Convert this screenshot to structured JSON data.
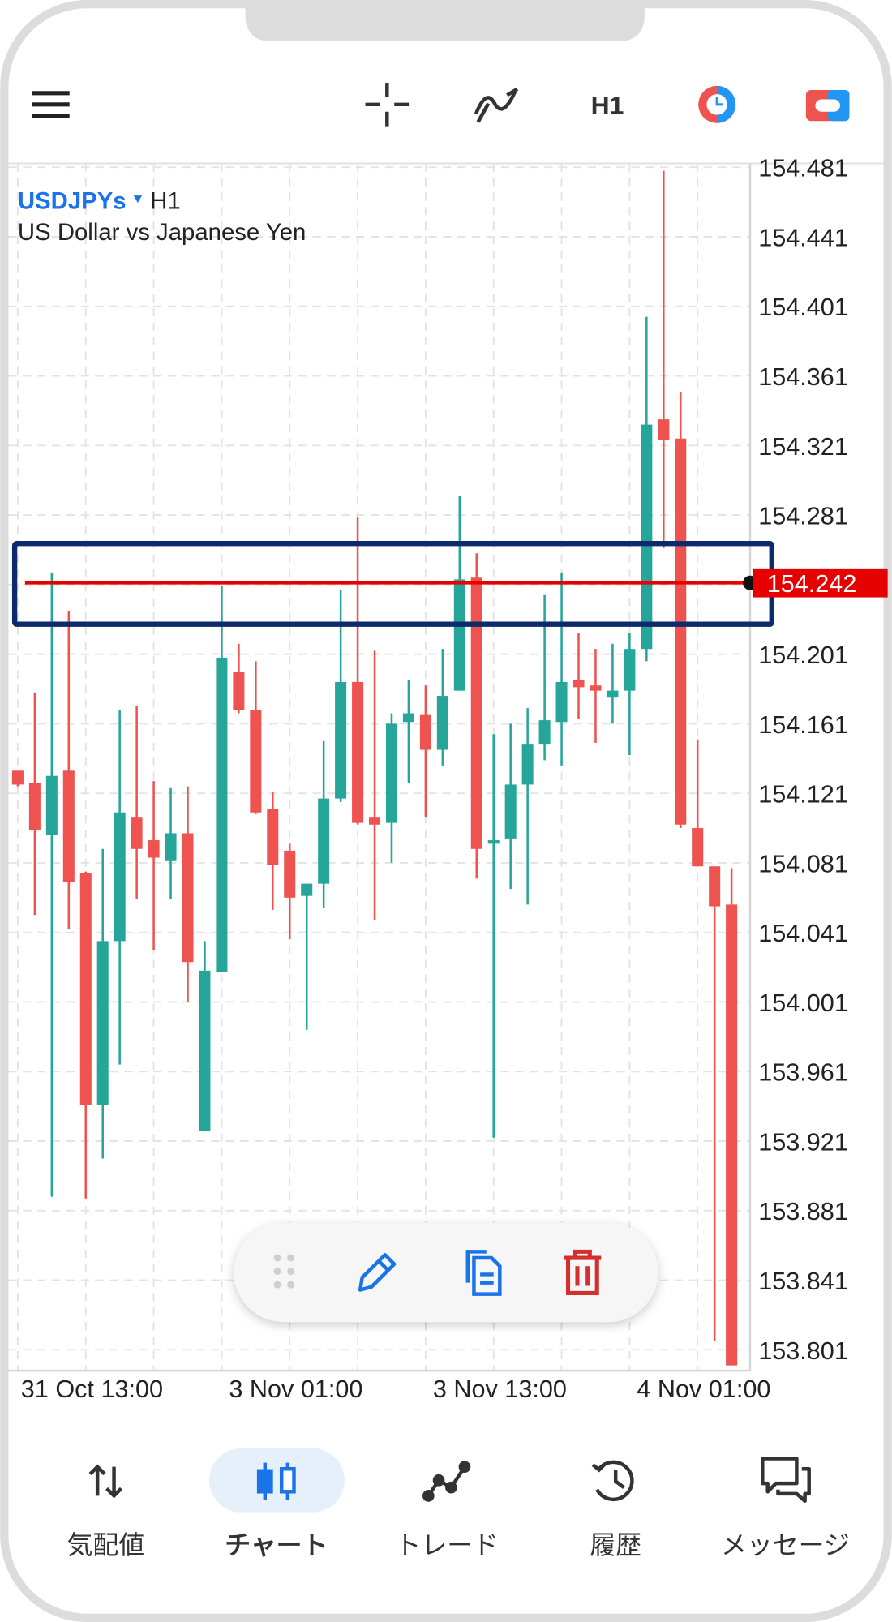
{
  "chart_data": {
    "type": "candlestick",
    "symbol": "USDJPYs",
    "timeframe": "H1",
    "description": "US Dollar vs Japanese Yen",
    "categories": [
      null,
      null,
      null,
      null,
      "31 Oct 13:00",
      null,
      null,
      null,
      null,
      null,
      null,
      null,
      null,
      null,
      null,
      null,
      "3 Nov 01:00",
      null,
      null,
      null,
      null,
      null,
      null,
      null,
      null,
      null,
      null,
      null,
      "3 Nov 13:00",
      null,
      null,
      null,
      null,
      null,
      null,
      null,
      null,
      null,
      null,
      null,
      "4 Nov 01:00",
      null,
      null
    ],
    "open": [
      154.134,
      154.127,
      154.097,
      154.134,
      154.075,
      153.942,
      154.036,
      154.107,
      154.094,
      154.082,
      154.098,
      153.927,
      154.018,
      154.191,
      154.169,
      154.112,
      154.088,
      154.062,
      154.069,
      154.118,
      154.185,
      154.107,
      154.104,
      154.162,
      154.166,
      154.146,
      154.18,
      154.245,
      154.092,
      154.095,
      154.126,
      154.149,
      154.162,
      154.186,
      154.183,
      154.176,
      154.18,
      154.204,
      154.336,
      154.325,
      154.101,
      154.079,
      154.057
    ],
    "high": [
      154.134,
      154.179,
      154.248,
      154.226,
      154.076,
      154.089,
      154.169,
      154.171,
      154.128,
      154.124,
      154.125,
      154.036,
      154.24,
      154.207,
      154.197,
      154.122,
      154.092,
      154.069,
      154.151,
      154.238,
      154.28,
      154.203,
      154.167,
      154.186,
      154.183,
      154.204,
      154.292,
      154.259,
      154.155,
      154.161,
      154.17,
      154.235,
      154.248,
      154.213,
      154.204,
      154.207,
      154.213,
      154.395,
      154.479,
      154.352,
      154.152,
      154.079,
      154.078
    ],
    "low": [
      154.125,
      154.051,
      153.889,
      154.043,
      153.888,
      153.911,
      153.965,
      154.06,
      154.031,
      154.06,
      154.001,
      153.927,
      154.018,
      154.167,
      154.109,
      154.054,
      154.037,
      153.985,
      154.055,
      154.116,
      154.103,
      154.048,
      154.081,
      154.127,
      154.107,
      154.137,
      154.18,
      154.072,
      153.923,
      154.066,
      154.057,
      154.14,
      154.137,
      154.164,
      154.15,
      154.161,
      154.143,
      154.197,
      154.262,
      154.101,
      154.079,
      153.806,
      153.792
    ],
    "close": [
      154.126,
      154.1,
      154.131,
      154.07,
      153.942,
      154.036,
      154.11,
      154.089,
      154.084,
      154.098,
      154.024,
      154.019,
      154.199,
      154.169,
      154.11,
      154.08,
      154.061,
      154.069,
      154.118,
      154.185,
      154.104,
      154.103,
      154.161,
      154.167,
      154.146,
      154.177,
      154.244,
      154.089,
      154.094,
      154.126,
      154.149,
      154.163,
      154.185,
      154.182,
      154.18,
      154.18,
      154.204,
      154.333,
      154.324,
      154.103,
      154.079,
      154.056,
      153.792
    ],
    "up_color": "#26a69a",
    "down_color": "#ef5350",
    "ylim": [
      153.789,
      154.482
    ],
    "yticks": [
      154.481,
      154.441,
      154.401,
      154.361,
      154.321,
      154.281,
      154.241,
      154.201,
      154.161,
      154.121,
      154.081,
      154.041,
      154.001,
      153.961,
      153.921,
      153.881,
      153.841,
      153.801
    ],
    "grid": true,
    "price_line": 154.242,
    "price_line_color": "#e60000"
  },
  "nav": {
    "items": [
      "気配値",
      "チャート",
      "トレード",
      "履歴",
      "メッセージ"
    ],
    "active": 1
  }
}
